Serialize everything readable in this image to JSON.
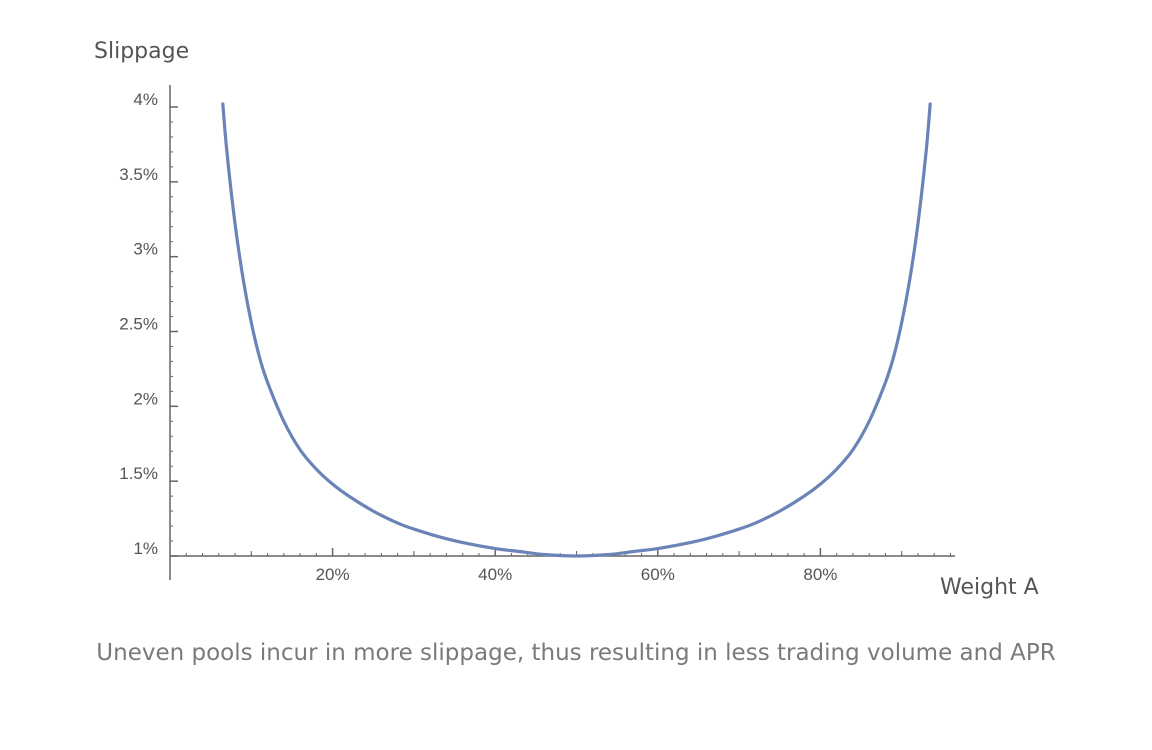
{
  "chart_data": {
    "type": "line",
    "title": "",
    "xlabel": "Weight A",
    "ylabel": "Slippage",
    "xlim": [
      0,
      100
    ],
    "ylim": [
      1,
      4
    ],
    "x_ticks": [
      20,
      40,
      60,
      80
    ],
    "x_tick_labels": [
      "20%",
      "40%",
      "60%",
      "80%"
    ],
    "y_ticks": [
      1,
      1.5,
      2,
      2.5,
      3,
      3.5,
      4
    ],
    "y_tick_labels": [
      "1%",
      "1.5%",
      "2%",
      "2.5%",
      "3%",
      "3.5%",
      "4%"
    ],
    "grid": false,
    "line_color": "#6a84b8",
    "series": [
      {
        "values_x": [
          6.5,
          7,
          8,
          9,
          10,
          11,
          12,
          14,
          16,
          18,
          20,
          22,
          25,
          28,
          30,
          33,
          36,
          40,
          43,
          46,
          50,
          54,
          57,
          60,
          64,
          67,
          70,
          72,
          75,
          78,
          80,
          82,
          84,
          86,
          88,
          89,
          90,
          91,
          92,
          93,
          93.5
        ],
        "values_y": [
          4.02,
          3.7,
          3.22,
          2.85,
          2.56,
          2.33,
          2.16,
          1.9,
          1.71,
          1.58,
          1.48,
          1.4,
          1.3,
          1.22,
          1.18,
          1.13,
          1.09,
          1.05,
          1.03,
          1.01,
          1.0,
          1.01,
          1.03,
          1.05,
          1.09,
          1.13,
          1.18,
          1.22,
          1.3,
          1.4,
          1.48,
          1.58,
          1.71,
          1.9,
          2.16,
          2.33,
          2.56,
          2.85,
          3.22,
          3.7,
          4.02
        ]
      }
    ]
  },
  "caption": "Uneven pools incur in more slippage, thus resulting in less trading volume and APR"
}
